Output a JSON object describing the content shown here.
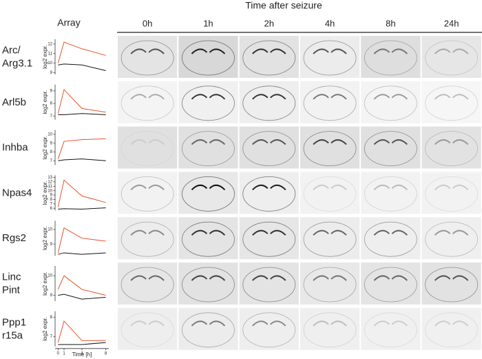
{
  "header": {
    "title": "Time after seizure",
    "array_label": "Array",
    "columns": [
      "0h",
      "1h",
      "2h",
      "4h",
      "8h",
      "24h"
    ]
  },
  "chart_data": [
    {
      "type": "line",
      "title": [
        "Arc/",
        "Arg3.1"
      ],
      "y_label": "log2 expr.",
      "x": [
        0,
        1,
        4,
        8
      ],
      "xlim": [
        -0.5,
        8.5
      ],
      "ylim": [
        8.8,
        12.5
      ],
      "yticks": [
        9,
        10,
        11,
        12
      ],
      "series": [
        {
          "color": "#e8502a",
          "values": [
            10.0,
            12.2,
            11.5,
            10.8
          ]
        },
        {
          "color": "#111111",
          "values": [
            9.8,
            9.9,
            9.8,
            9.2
          ]
        }
      ]
    },
    {
      "type": "line",
      "title": [
        "Arl5b"
      ],
      "y_label": "log2 expr.",
      "x": [
        0,
        1,
        4,
        8
      ],
      "xlim": [
        -0.5,
        8.5
      ],
      "ylim": [
        6.7,
        9.5
      ],
      "yticks": [
        7,
        8,
        9
      ],
      "series": [
        {
          "color": "#e8502a",
          "values": [
            7.2,
            9.1,
            7.6,
            7.3
          ]
        },
        {
          "color": "#111111",
          "values": [
            7.1,
            7.1,
            7.2,
            7.1
          ]
        }
      ]
    },
    {
      "type": "line",
      "title": [
        "Inhba"
      ],
      "y_label": "log2 expr.",
      "x": [
        0,
        1,
        4,
        8
      ],
      "xlim": [
        -0.5,
        8.5
      ],
      "ylim": [
        6.5,
        10.5
      ],
      "yticks": [
        7,
        8,
        9,
        10
      ],
      "series": [
        {
          "color": "#e8502a",
          "values": [
            7.2,
            9.2,
            9.4,
            9.5
          ]
        },
        {
          "color": "#111111",
          "values": [
            7.0,
            7.1,
            7.2,
            7.0
          ]
        }
      ]
    },
    {
      "type": "line",
      "title": [
        "Npas4"
      ],
      "y_label": "log2 expr.",
      "x": [
        0,
        1,
        4,
        8
      ],
      "xlim": [
        -0.5,
        8.5
      ],
      "ylim": [
        5.5,
        13.5
      ],
      "yticks": [
        6,
        7,
        8,
        9,
        10,
        11,
        12,
        13
      ],
      "series": [
        {
          "color": "#e8502a",
          "values": [
            6.3,
            12.4,
            8.8,
            7.3
          ]
        },
        {
          "color": "#111111",
          "values": [
            5.8,
            5.9,
            5.8,
            6.1
          ]
        }
      ]
    },
    {
      "type": "line",
      "title": [
        "Rgs2"
      ],
      "y_label": "log2 expr.",
      "x": [
        0,
        1,
        4,
        8
      ],
      "xlim": [
        -0.5,
        8.5
      ],
      "ylim": [
        8.2,
        10.6
      ],
      "yticks": [
        9,
        10
      ],
      "series": [
        {
          "color": "#e8502a",
          "values": [
            8.4,
            10.1,
            9.4,
            9.2
          ]
        },
        {
          "color": "#111111",
          "values": [
            8.3,
            8.4,
            8.3,
            8.4
          ]
        }
      ]
    },
    {
      "type": "line",
      "title": [
        "Linc",
        "Pint"
      ],
      "y_label": "log2 expr.",
      "x": [
        0,
        1,
        4,
        8
      ],
      "xlim": [
        -0.5,
        8.5
      ],
      "ylim": [
        8.7,
        10.5
      ],
      "yticks": [
        9,
        10
      ],
      "series": [
        {
          "color": "#e8502a",
          "values": [
            9.3,
            10.0,
            9.3,
            9.0
          ]
        },
        {
          "color": "#111111",
          "values": [
            9.0,
            9.05,
            8.8,
            8.9
          ]
        }
      ]
    },
    {
      "type": "line",
      "title": [
        "Ppp1",
        "r15a"
      ],
      "y_label": "log2 expr.",
      "x": [
        0,
        1,
        4,
        8
      ],
      "xlim": [
        -0.5,
        8.5
      ],
      "ylim": [
        6.5,
        8.3
      ],
      "yticks": [
        7,
        8
      ],
      "xticks": [
        0,
        1,
        4,
        8
      ],
      "x_label": "Time [h]",
      "series": [
        {
          "color": "#e8502a",
          "values": [
            6.7,
            7.8,
            6.8,
            6.8
          ]
        },
        {
          "color": "#111111",
          "values": [
            6.6,
            6.6,
            6.6,
            6.7
          ]
        }
      ]
    }
  ]
}
